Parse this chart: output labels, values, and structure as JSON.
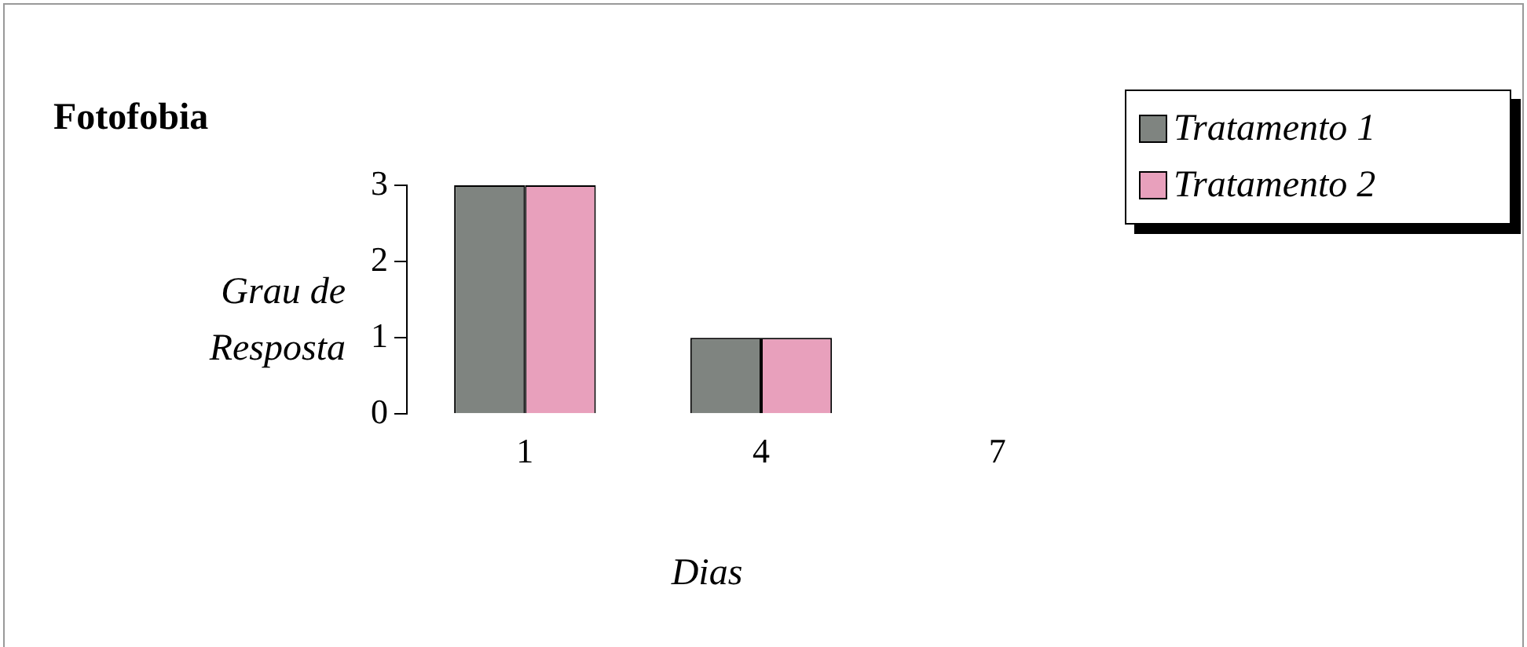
{
  "chart_data": {
    "type": "bar",
    "title": "Fotofobia",
    "ylabel": "Grau de Resposta",
    "xlabel": "Dias",
    "categories": [
      "1",
      "4",
      "7"
    ],
    "series": [
      {
        "name": "Tratamento 1",
        "color": "#7f8480",
        "values": [
          3,
          1,
          0
        ]
      },
      {
        "name": "Tratamento 2",
        "color": "#e8a0bc",
        "values": [
          3,
          1,
          0
        ]
      }
    ],
    "ylim": [
      0,
      3
    ],
    "yticks": [
      0,
      1,
      2,
      3
    ],
    "grid": false,
    "legend": "top right"
  }
}
